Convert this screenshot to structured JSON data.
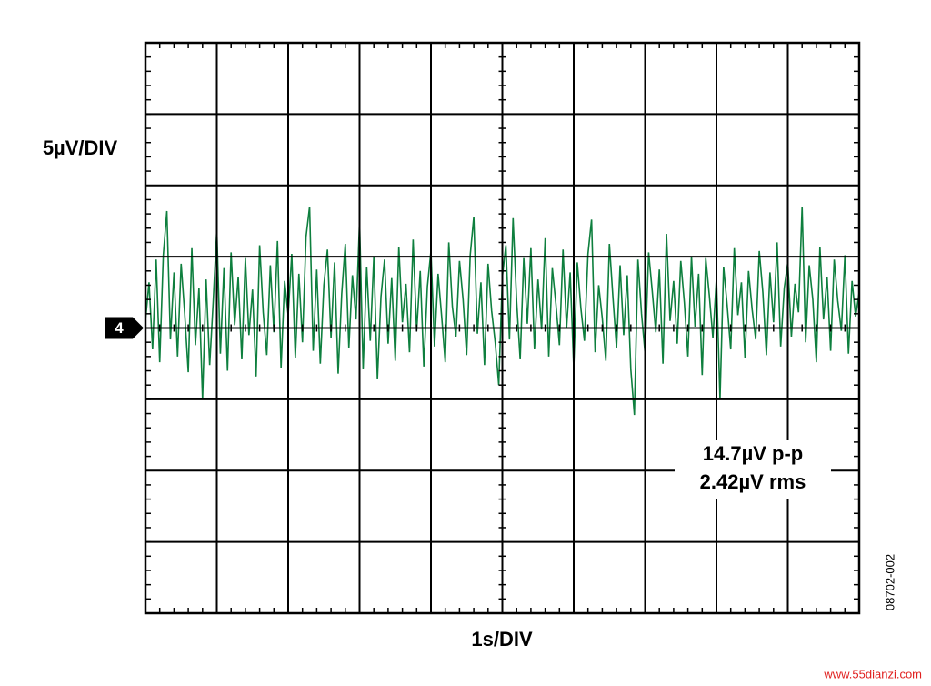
{
  "chart_data": {
    "type": "line",
    "y_label": "5µV/DIV",
    "x_label": "1s/DIV",
    "annotations": [
      "14.7µV p-p",
      "2.42µV rms"
    ],
    "channel_marker": "4",
    "figure_id": "08702-002",
    "watermark": "www.55dianzi.com",
    "color": "#0e7f3e",
    "grid": true,
    "xlim": [
      0,
      10
    ],
    "ylim": [
      -20,
      20
    ],
    "xticks": [
      0,
      1,
      2,
      3,
      4,
      5,
      6,
      7,
      8,
      9,
      10
    ],
    "yticks": [
      -20,
      -15,
      -10,
      -5,
      0,
      5,
      10,
      15,
      20
    ],
    "x": [
      0,
      0.05,
      0.1,
      0.15,
      0.2,
      0.25,
      0.3,
      0.35,
      0.4,
      0.45,
      0.5,
      0.55,
      0.6,
      0.65,
      0.7,
      0.75,
      0.8,
      0.85,
      0.9,
      0.95,
      1,
      1.05,
      1.1,
      1.15,
      1.2,
      1.25,
      1.3,
      1.35,
      1.4,
      1.45,
      1.5,
      1.55,
      1.6,
      1.65,
      1.7,
      1.75,
      1.8,
      1.85,
      1.9,
      1.95,
      2,
      2.05,
      2.1,
      2.15,
      2.2,
      2.25,
      2.3,
      2.35,
      2.4,
      2.45,
      2.5,
      2.55,
      2.6,
      2.65,
      2.7,
      2.75,
      2.8,
      2.85,
      2.9,
      2.95,
      3,
      3.05,
      3.1,
      3.15,
      3.2,
      3.25,
      3.3,
      3.35,
      3.4,
      3.45,
      3.5,
      3.55,
      3.6,
      3.65,
      3.7,
      3.75,
      3.8,
      3.85,
      3.9,
      3.95,
      4,
      4.05,
      4.1,
      4.15,
      4.2,
      4.25,
      4.3,
      4.35,
      4.4,
      4.45,
      4.5,
      4.55,
      4.6,
      4.65,
      4.7,
      4.75,
      4.8,
      4.85,
      4.9,
      4.95,
      5,
      5.05,
      5.1,
      5.15,
      5.2,
      5.25,
      5.3,
      5.35,
      5.4,
      5.45,
      5.5,
      5.55,
      5.6,
      5.65,
      5.7,
      5.75,
      5.8,
      5.85,
      5.9,
      5.95,
      6,
      6.05,
      6.1,
      6.15,
      6.2,
      6.25,
      6.3,
      6.35,
      6.4,
      6.45,
      6.5,
      6.55,
      6.6,
      6.65,
      6.7,
      6.75,
      6.8,
      6.85,
      6.9,
      6.95,
      7,
      7.05,
      7.1,
      7.15,
      7.2,
      7.25,
      7.3,
      7.35,
      7.4,
      7.45,
      7.5,
      7.55,
      7.6,
      7.65,
      7.7,
      7.75,
      7.8,
      7.85,
      7.9,
      7.95,
      8,
      8.05,
      8.1,
      8.15,
      8.2,
      8.25,
      8.3,
      8.35,
      8.4,
      8.45,
      8.5,
      8.55,
      8.6,
      8.65,
      8.7,
      8.75,
      8.8,
      8.85,
      8.9,
      8.95,
      9,
      9.05,
      9.1,
      9.15,
      9.2,
      9.25,
      9.3,
      9.35,
      9.4,
      9.45,
      9.5,
      9.55,
      9.6,
      9.65,
      9.7,
      9.75,
      9.8,
      9.85,
      9.9,
      9.95,
      10
    ],
    "values": [
      0.5,
      3.2,
      -1.5,
      4.8,
      -2.4,
      5.1,
      8.2,
      -0.8,
      3.9,
      -2.0,
      4.5,
      1.0,
      -3.1,
      5.6,
      -1.2,
      2.8,
      -5.0,
      3.4,
      -2.6,
      1.9,
      6.9,
      -1.8,
      4.2,
      -3.0,
      5.3,
      0.2,
      3.6,
      -2.2,
      4.9,
      -0.5,
      2.7,
      -3.4,
      5.8,
      1.1,
      -1.9,
      4.4,
      -0.3,
      6.1,
      -2.8,
      3.3,
      0.9,
      5.2,
      -2.1,
      3.8,
      -1.0,
      6.4,
      8.5,
      -1.6,
      4.1,
      -2.5,
      3.0,
      5.5,
      -0.7,
      4.6,
      -3.2,
      2.4,
      5.9,
      -1.4,
      3.7,
      0.6,
      7.5,
      -2.9,
      4.3,
      -0.9,
      5.0,
      -3.6,
      2.2,
      4.8,
      -1.1,
      3.5,
      -2.3,
      5.7,
      0.4,
      3.1,
      -1.7,
      6.2,
      -0.2,
      4.0,
      -2.7,
      2.9,
      5.4,
      -1.3,
      3.8,
      0.8,
      -2.4,
      6.0,
      1.5,
      -0.6,
      4.7,
      2.0,
      -1.9,
      5.1,
      7.8,
      -0.4,
      3.2,
      -2.6,
      4.5,
      1.2,
      -1.0,
      -4.0,
      3.6,
      5.8,
      -0.8,
      7.7,
      1.9,
      -2.2,
      4.9,
      0.3,
      5.6,
      -1.5,
      3.4,
      -0.1,
      6.3,
      -2.0,
      4.2,
      1.7,
      -1.2,
      5.5,
      0.0,
      3.9,
      -2.8,
      4.6,
      1.4,
      -0.9,
      5.2,
      7.6,
      -1.7,
      3.0,
      0.7,
      -2.3,
      5.9,
      2.1,
      -1.4,
      4.4,
      -0.5,
      3.7,
      -2.9,
      -6.1,
      4.8,
      1.0,
      -1.8,
      5.3,
      2.6,
      -0.3,
      4.1,
      -2.5,
      6.6,
      0.5,
      3.3,
      -1.1,
      4.7,
      1.8,
      -2.0,
      5.0,
      0.1,
      3.8,
      -3.3,
      4.9,
      2.3,
      -0.7,
      3.5,
      -5.0,
      4.3,
      1.6,
      -1.5,
      5.6,
      0.9,
      3.2,
      -2.1,
      4.0,
      1.3,
      -0.8,
      5.4,
      2.5,
      -1.9,
      3.9,
      0.4,
      6.0,
      -1.3,
      2.8,
      4.6,
      -0.6,
      3.1,
      1.1,
      8.5,
      -1.0,
      4.4,
      2.0,
      -2.4,
      5.7,
      0.6,
      3.6,
      -1.6,
      4.8,
      1.9,
      -0.2,
      5.1,
      -1.8,
      3.3,
      0.8,
      2.5
    ]
  }
}
